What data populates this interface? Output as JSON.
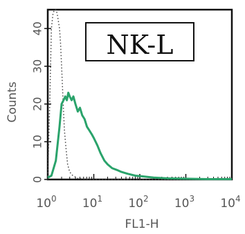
{
  "chart_data": {
    "type": "line",
    "panel_label": "NK-L",
    "xlabel": "FL1-H",
    "ylabel": "Counts",
    "x_scale": "log",
    "xlim": [
      1,
      10000
    ],
    "ylim": [
      0,
      45
    ],
    "x_ticks": [
      {
        "value": 1,
        "base": "10",
        "exp": "0"
      },
      {
        "value": 10,
        "base": "10",
        "exp": "1"
      },
      {
        "value": 100,
        "base": "10",
        "exp": "2"
      },
      {
        "value": 1000,
        "base": "10",
        "exp": "3"
      },
      {
        "value": 10000,
        "base": "10",
        "exp": "4"
      }
    ],
    "y_ticks": [
      0,
      10,
      20,
      30,
      40
    ],
    "grid": false,
    "series": [
      {
        "style": "solid",
        "color": "#2aa36b",
        "x": [
          1.0,
          1.2,
          1.5,
          1.8,
          2.0,
          2.2,
          2.4,
          2.6,
          2.8,
          3.0,
          3.3,
          3.6,
          4.0,
          4.5,
          5.0,
          5.6,
          6.3,
          7.1,
          8.0,
          9.0,
          10,
          12,
          14,
          17,
          20,
          25,
          32,
          40,
          55,
          80,
          120,
          200,
          400,
          1000,
          3000,
          10000
        ],
        "y": [
          0.5,
          1,
          5,
          14,
          20,
          21,
          22,
          21,
          23,
          22,
          21,
          22,
          20,
          18,
          19,
          17,
          16,
          14,
          13,
          12,
          11,
          9,
          7,
          5,
          4,
          3,
          2.5,
          2,
          1.5,
          1,
          0.8,
          0.5,
          0.3,
          0.2,
          0.1,
          0.1
        ]
      },
      {
        "style": "dotted",
        "color": "#444444",
        "x": [
          1.0,
          1.1,
          1.2,
          1.3,
          1.4,
          1.5,
          1.6,
          1.7,
          1.8,
          1.9,
          2.0,
          2.1,
          2.2,
          2.3,
          2.5,
          2.7,
          3.0,
          3.5,
          4.5,
          6,
          10,
          10000
        ],
        "y": [
          0,
          20,
          40,
          44,
          45,
          45,
          44,
          42,
          40,
          36,
          30,
          24,
          18,
          13,
          8,
          4,
          2,
          1,
          0.3,
          0.1,
          0,
          0
        ]
      }
    ]
  }
}
